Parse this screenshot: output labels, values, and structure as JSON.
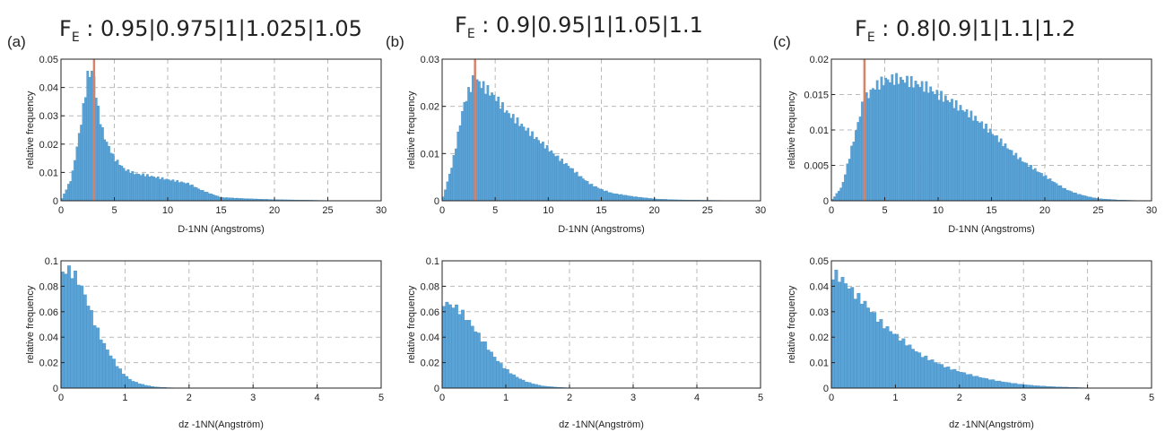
{
  "panels": [
    {
      "label": "(a)",
      "title_main": "F",
      "title_sub": "E",
      "title_rest": " : 0.95|0.975|1|1.025|1.05"
    },
    {
      "label": "(b)",
      "title_main": "F",
      "title_sub": "E",
      "title_rest": " : 0.9|0.95|1|1.05|1.1"
    },
    {
      "label": "(c)",
      "title_main": "F",
      "title_sub": "E",
      "title_rest": " : 0.8|0.9|1|1.1|1.2"
    }
  ],
  "colors": {
    "bar": "#5aa3d6",
    "bar_edge": "#3f86bd",
    "marker": "#d9826a",
    "grid": "#b9b9b9"
  },
  "chart_data": [
    {
      "type": "bar",
      "panel": "a",
      "row": "top",
      "xlabel": "D-1NN (Angstroms)",
      "ylabel": "relative frequency",
      "xlim": [
        0,
        30
      ],
      "ylim": [
        0,
        0.05
      ],
      "xticks": [
        "0",
        "5",
        "10",
        "15",
        "20",
        "25",
        "30"
      ],
      "yticks": [
        "0",
        "0.01",
        "0.02",
        "0.03",
        "0.04",
        "0.05"
      ],
      "grid": true,
      "marker_x": 3.1,
      "x": [
        0,
        1,
        2,
        2.5,
        3,
        3.5,
        4,
        5,
        6,
        7,
        8,
        9,
        10,
        11,
        12,
        13,
        14,
        15,
        17,
        20,
        25,
        30
      ],
      "values": [
        0,
        0.008,
        0.03,
        0.044,
        0.046,
        0.032,
        0.023,
        0.015,
        0.011,
        0.0095,
        0.009,
        0.0082,
        0.0075,
        0.0068,
        0.006,
        0.004,
        0.0025,
        0.0012,
        0.0008,
        0.0004,
        0.0001,
        0
      ]
    },
    {
      "type": "bar",
      "panel": "b",
      "row": "top",
      "xlabel": "D-1NN (Angstroms)",
      "ylabel": "relative frequency",
      "xlim": [
        0,
        30
      ],
      "ylim": [
        0,
        0.03
      ],
      "xticks": [
        "0",
        "5",
        "10",
        "15",
        "20",
        "25",
        "30"
      ],
      "yticks": [
        "0",
        "0.01",
        "0.02",
        "0.03"
      ],
      "grid": true,
      "marker_x": 3.1,
      "x": [
        0,
        1,
        2,
        3,
        4,
        5,
        6,
        7,
        8,
        9,
        10,
        11,
        12,
        13,
        14,
        15,
        16,
        18,
        20,
        22,
        25,
        30
      ],
      "values": [
        0,
        0.008,
        0.02,
        0.026,
        0.024,
        0.022,
        0.019,
        0.017,
        0.015,
        0.013,
        0.011,
        0.009,
        0.0072,
        0.0052,
        0.0035,
        0.0024,
        0.0016,
        0.0009,
        0.0004,
        0.0002,
        0.0001,
        0
      ]
    },
    {
      "type": "bar",
      "panel": "c",
      "row": "top",
      "xlabel": "D-1NN (Angstroms)",
      "ylabel": "relative frequency",
      "xlim": [
        0,
        30
      ],
      "ylim": [
        0,
        0.02
      ],
      "xticks": [
        "0",
        "5",
        "10",
        "15",
        "20",
        "25",
        "30"
      ],
      "yticks": [
        "0",
        "0.005",
        "0.01",
        "0.015",
        "0.02"
      ],
      "grid": true,
      "marker_x": 3.1,
      "x": [
        0,
        1,
        2,
        3,
        4,
        5,
        6,
        7,
        8,
        9,
        10,
        11,
        12,
        13,
        14,
        15,
        16,
        17,
        18,
        19,
        20,
        21,
        22,
        23,
        24,
        25,
        27,
        30
      ],
      "values": [
        0,
        0.002,
        0.008,
        0.014,
        0.016,
        0.017,
        0.0172,
        0.017,
        0.0165,
        0.016,
        0.015,
        0.0142,
        0.0132,
        0.0122,
        0.011,
        0.0097,
        0.0082,
        0.0068,
        0.0055,
        0.0045,
        0.0035,
        0.0025,
        0.0016,
        0.001,
        0.0006,
        0.0003,
        0.0001,
        0
      ]
    },
    {
      "type": "bar",
      "panel": "a",
      "row": "bottom",
      "xlabel": "dz -1NN(Angström)",
      "ylabel": "relative frequency",
      "xlim": [
        0,
        5
      ],
      "ylim": [
        0,
        0.1
      ],
      "xticks": [
        "0",
        "1",
        "2",
        "3",
        "4",
        "5"
      ],
      "yticks": [
        "0",
        "0.02",
        "0.04",
        "0.06",
        "0.08",
        "0.1"
      ],
      "grid": true,
      "x": [
        0,
        0.1,
        0.2,
        0.3,
        0.4,
        0.5,
        0.6,
        0.7,
        0.8,
        0.9,
        1.0,
        1.1,
        1.2,
        1.3,
        1.4,
        1.5,
        1.7,
        2.0,
        5.0
      ],
      "values": [
        0.09,
        0.093,
        0.09,
        0.082,
        0.07,
        0.055,
        0.042,
        0.032,
        0.024,
        0.016,
        0.01,
        0.006,
        0.004,
        0.0025,
        0.0015,
        0.0008,
        0.0003,
        0.0001,
        0
      ]
    },
    {
      "type": "bar",
      "panel": "b",
      "row": "bottom",
      "xlabel": "dz -1NN(Angström)",
      "ylabel": "relative frequency",
      "xlim": [
        0,
        5
      ],
      "ylim": [
        0,
        0.1
      ],
      "xticks": [
        "0",
        "1",
        "2",
        "3",
        "4",
        "5"
      ],
      "yticks": [
        "0",
        "0.02",
        "0.04",
        "0.06",
        "0.08",
        "0.1"
      ],
      "grid": true,
      "x": [
        0,
        0.1,
        0.2,
        0.3,
        0.4,
        0.5,
        0.6,
        0.7,
        0.8,
        0.9,
        1.0,
        1.1,
        1.2,
        1.3,
        1.4,
        1.5,
        1.6,
        1.8,
        2.0,
        5.0
      ],
      "values": [
        0.067,
        0.066,
        0.064,
        0.06,
        0.054,
        0.047,
        0.04,
        0.033,
        0.026,
        0.02,
        0.015,
        0.011,
        0.008,
        0.0055,
        0.0038,
        0.0025,
        0.0015,
        0.0007,
        0.0002,
        0
      ]
    },
    {
      "type": "bar",
      "panel": "c",
      "row": "bottom",
      "xlabel": "dz -1NN(Angström)",
      "ylabel": "relative frequency",
      "xlim": [
        0,
        5
      ],
      "ylim": [
        0,
        0.05
      ],
      "xticks": [
        "0",
        "1",
        "2",
        "3",
        "4",
        "5"
      ],
      "yticks": [
        "0",
        "0.01",
        "0.02",
        "0.03",
        "0.04",
        "0.05"
      ],
      "grid": true,
      "x": [
        0,
        0.1,
        0.2,
        0.3,
        0.4,
        0.5,
        0.6,
        0.7,
        0.8,
        1.0,
        1.2,
        1.4,
        1.6,
        1.8,
        2.0,
        2.2,
        2.4,
        2.6,
        2.8,
        3.0,
        3.2,
        3.5,
        4.0,
        5.0
      ],
      "values": [
        0.045,
        0.044,
        0.042,
        0.039,
        0.036,
        0.034,
        0.031,
        0.028,
        0.025,
        0.021,
        0.017,
        0.013,
        0.0105,
        0.0082,
        0.0065,
        0.005,
        0.0038,
        0.0028,
        0.002,
        0.0014,
        0.0009,
        0.0005,
        0.0001,
        0
      ]
    }
  ]
}
